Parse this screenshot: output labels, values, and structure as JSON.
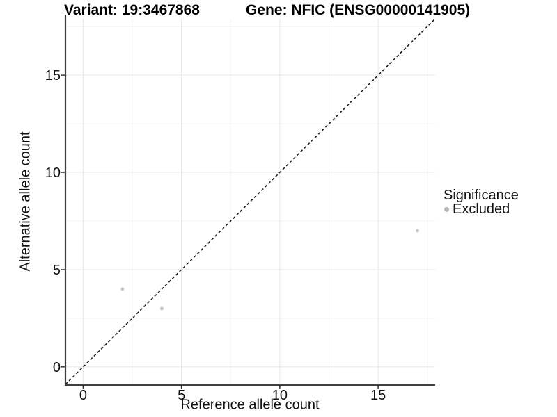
{
  "titles": {
    "variant": "Variant: 19:3467868",
    "gene": "Gene: NFIC (ENSG00000141905)"
  },
  "chart_data": {
    "type": "scatter",
    "title_left": "Variant: 19:3467868",
    "title_right": "Gene: NFIC (ENSG00000141905)",
    "xlabel": "Reference allele count",
    "ylabel": "Alternative allele count",
    "xlim": [
      -0.9,
      17.9
    ],
    "ylim": [
      -0.9,
      17.9
    ],
    "x_ticks": [
      0,
      5,
      10,
      15
    ],
    "y_ticks": [
      0,
      5,
      10,
      15
    ],
    "x_minor_ticks": [
      2.5,
      7.5,
      12.5,
      17.5
    ],
    "y_minor_ticks": [
      2.5,
      7.5,
      12.5,
      17.5
    ],
    "grid": true,
    "legend_position": "right",
    "series": [
      {
        "name": "Excluded",
        "marker": "circle",
        "color": "#c5c5c5",
        "points": [
          [
            2,
            4
          ],
          [
            4,
            3
          ],
          [
            17,
            7
          ]
        ]
      }
    ],
    "identity_line": {
      "style": "dashed",
      "from": [
        -0.9,
        -0.9
      ],
      "to": [
        17.9,
        17.9
      ],
      "color": "#141414",
      "note": "y = x reference line"
    },
    "legend": {
      "title": "Significance",
      "items": [
        {
          "label": "Excluded",
          "color": "#b5b5b5"
        }
      ]
    }
  },
  "colors": {
    "background": "#ffffff",
    "grid_major": "#e7e7e7",
    "grid_minor": "#f3f3f3",
    "axis_line": "#404040",
    "tick_mark": "#333333",
    "point_fill": "#c5c5c5",
    "text": "#111111"
  }
}
